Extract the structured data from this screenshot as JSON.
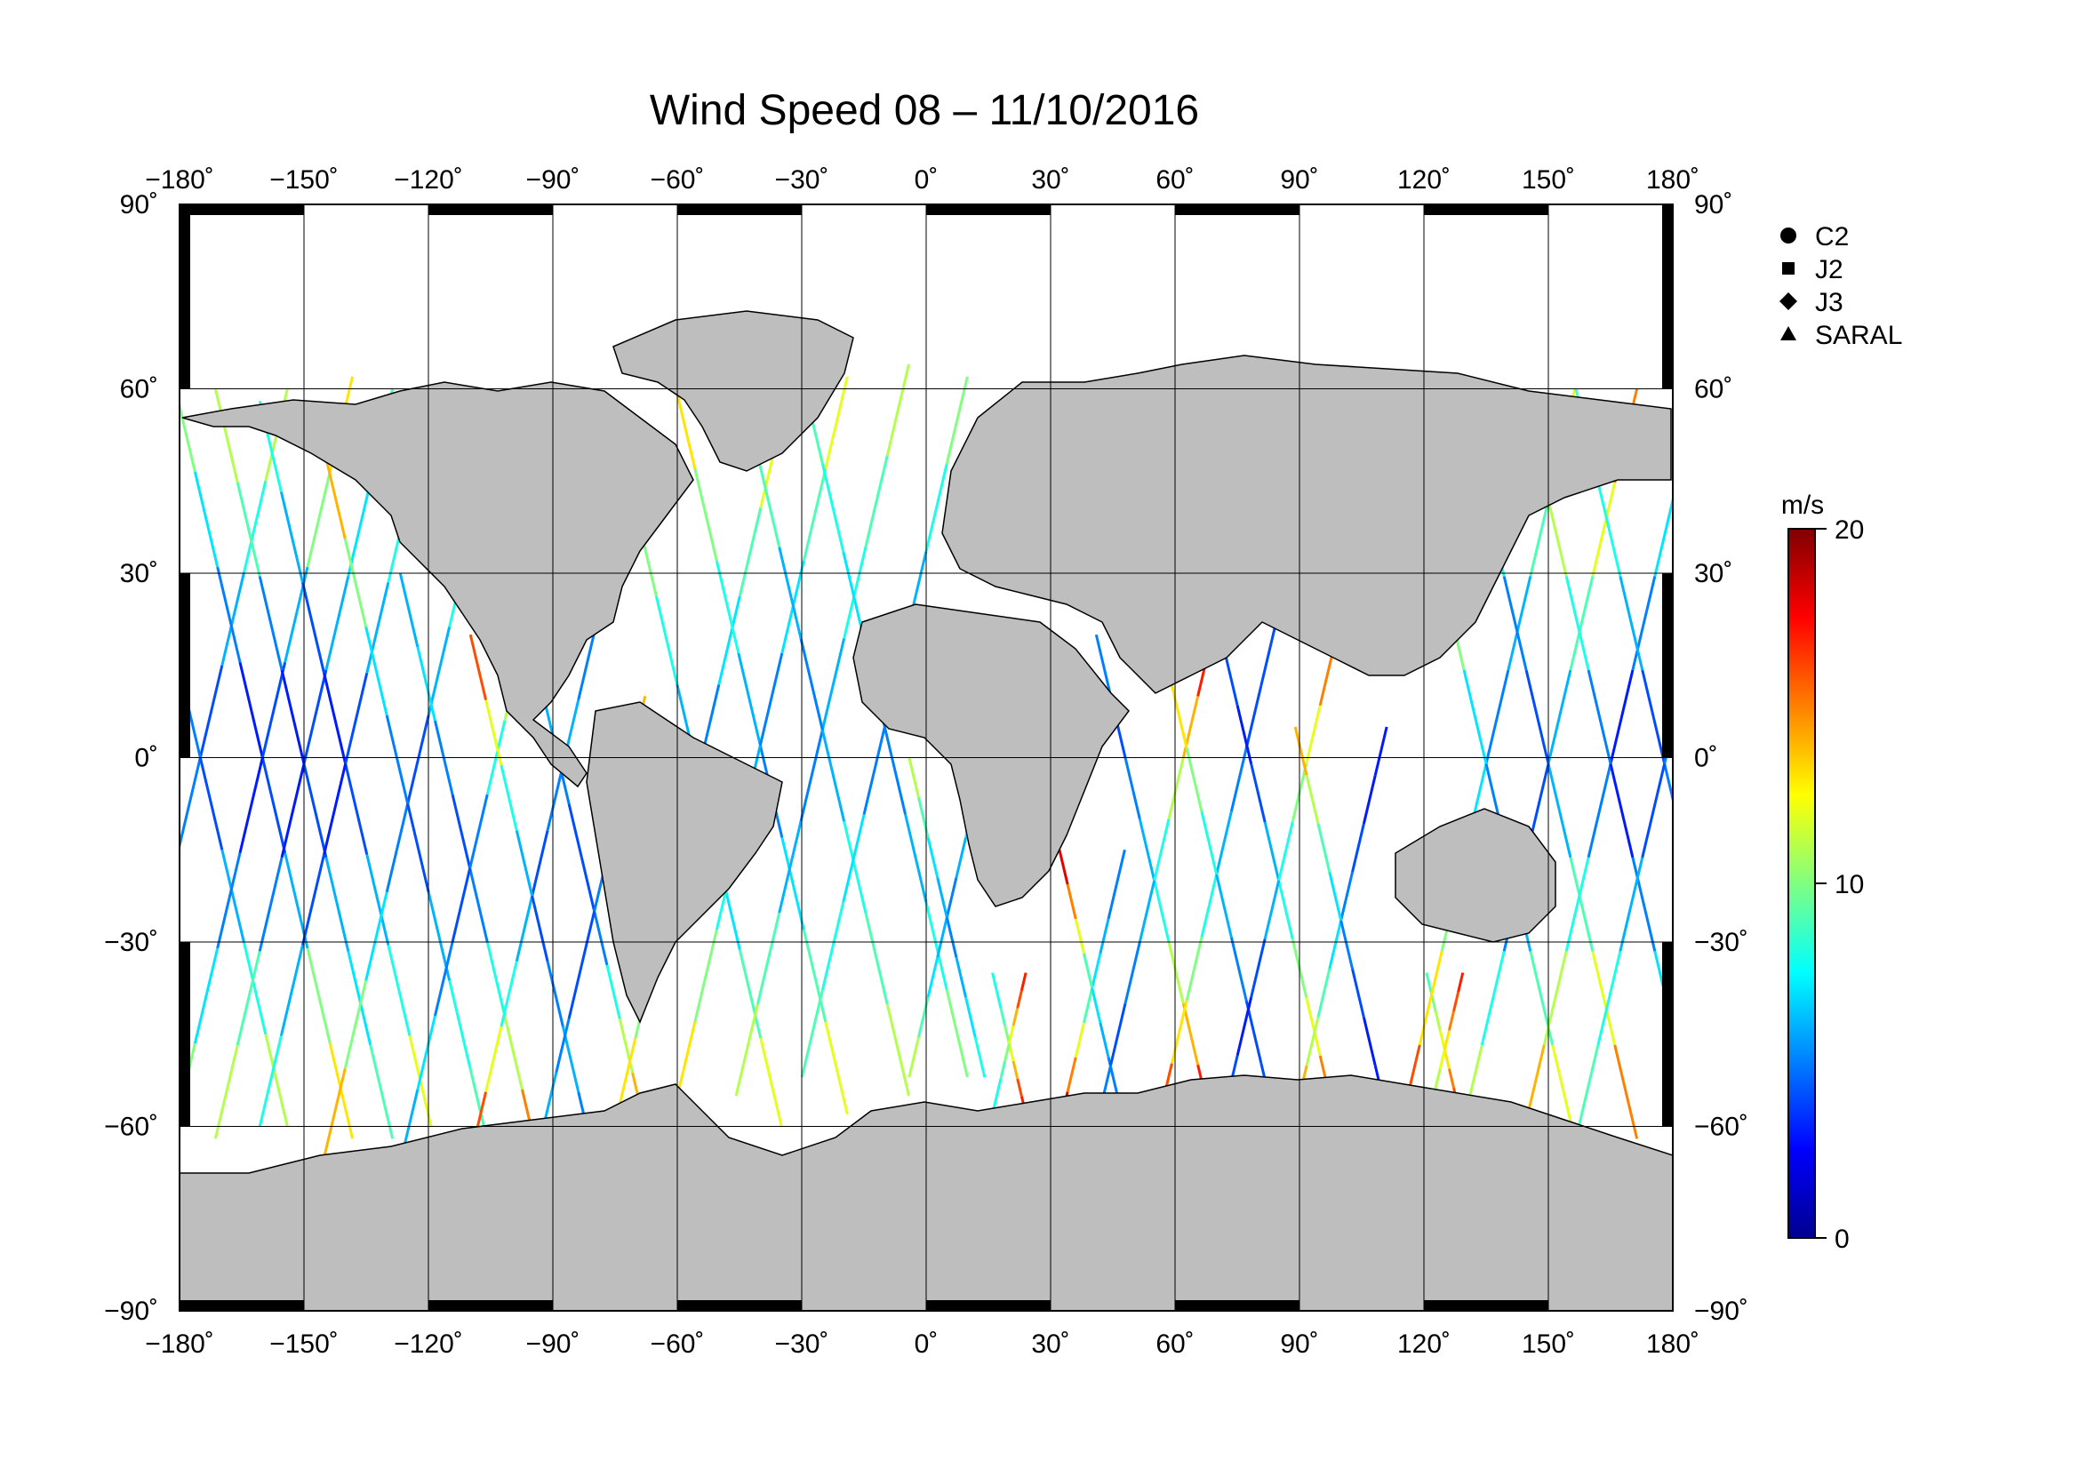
{
  "title": "Wind Speed 08 – 11/10/2016",
  "map": {
    "lon_range": [
      -180,
      180
    ],
    "lat_range": [
      -90,
      90
    ],
    "grid_lon_step": 30,
    "grid_lat_step": 30,
    "land_color": "#bebebe",
    "ocean_color": "#ffffff",
    "lon_labels": [
      "−180˚",
      "−150˚",
      "−120˚",
      "−90˚",
      "−60˚",
      "−30˚",
      "0˚",
      "30˚",
      "60˚",
      "90˚",
      "120˚",
      "150˚",
      "180˚"
    ],
    "lat_labels": [
      "90˚",
      "60˚",
      "30˚",
      "0˚",
      "−30˚",
      "−60˚",
      "−90˚"
    ]
  },
  "legend": {
    "placement": "top-right",
    "items": [
      {
        "label": "C2",
        "marker": "circle"
      },
      {
        "label": "J2",
        "marker": "square"
      },
      {
        "label": "J3",
        "marker": "diamond"
      },
      {
        "label": "SARAL",
        "marker": "triangle"
      }
    ]
  },
  "colorbar": {
    "unit": "m/s",
    "min": 0,
    "max": 20,
    "tick_labels": [
      "20",
      "10",
      "0"
    ],
    "tick_values": [
      20,
      10,
      0
    ],
    "colors": [
      "#00008f",
      "#0000ff",
      "#0080ff",
      "#00ffff",
      "#80ff80",
      "#ffff00",
      "#ff8000",
      "#ff0000",
      "#800000"
    ]
  },
  "chart_data": {
    "type": "scatter",
    "title": "Wind Speed 08 – 11/10/2016",
    "xlabel": "",
    "ylabel": "",
    "xlim": [
      -180,
      180
    ],
    "ylim": [
      -90,
      90
    ],
    "grid": true,
    "legend": "top-right",
    "series": [
      {
        "name": "C2"
      },
      {
        "name": "J2"
      },
      {
        "name": "J3"
      },
      {
        "name": "SARAL"
      }
    ],
    "tracks": [
      {
        "lon": -175,
        "lat": [
          -60,
          60
        ],
        "dir": 1,
        "speeds": [
          12,
          9,
          6,
          5,
          4,
          6,
          8,
          11
        ]
      },
      {
        "lon": -160,
        "lat": [
          -62,
          62
        ],
        "dir": -1,
        "speeds": [
          13,
          10,
          6,
          4,
          3,
          5,
          7,
          10
        ]
      },
      {
        "lon": -150,
        "lat": [
          -62,
          60
        ],
        "dir": 1,
        "speeds": [
          11,
          9,
          5,
          3,
          4,
          6,
          7,
          9
        ]
      },
      {
        "lon": -140,
        "lat": [
          -60,
          58
        ],
        "dir": -1,
        "speeds": [
          12,
          8,
          6,
          4,
          3,
          4,
          6,
          8
        ]
      },
      {
        "lon": -125,
        "lat": [
          -65,
          50
        ],
        "dir": 1,
        "speeds": [
          14,
          10,
          7,
          5,
          4,
          6,
          8,
          9
        ]
      },
      {
        "lon": -110,
        "lat": [
          -66,
          30
        ],
        "dir": -1,
        "speeds": [
          15,
          11,
          8,
          5,
          4,
          5,
          7,
          6
        ]
      },
      {
        "lon": -95,
        "lat": [
          -65,
          20
        ],
        "dir": 1,
        "speeds": [
          16,
          12,
          8,
          6,
          4,
          5,
          6,
          5
        ]
      },
      {
        "lon": -80,
        "lat": [
          -60,
          10
        ],
        "dir": -1,
        "speeds": [
          14,
          11,
          8,
          5,
          4,
          4,
          5,
          6
        ]
      },
      {
        "lon": -55,
        "lat": [
          -60,
          55
        ],
        "dir": 1,
        "speeds": [
          13,
          10,
          8,
          6,
          5,
          7,
          9,
          12
        ]
      },
      {
        "lon": -40,
        "lat": [
          -58,
          62
        ],
        "dir": -1,
        "speeds": [
          12,
          9,
          7,
          5,
          6,
          8,
          10,
          13
        ]
      },
      {
        "lon": -25,
        "lat": [
          -55,
          64
        ],
        "dir": 1,
        "speeds": [
          11,
          9,
          6,
          5,
          6,
          8,
          9,
          11
        ]
      },
      {
        "lon": -10,
        "lat": [
          -52,
          62
        ],
        "dir": -1,
        "speeds": [
          10,
          8,
          6,
          5,
          5,
          7,
          8,
          9
        ]
      },
      {
        "lon": 5,
        "lat": [
          -52,
          0
        ],
        "dir": 1,
        "speeds": [
          11,
          9,
          7,
          6,
          5,
          6,
          7,
          8
        ]
      },
      {
        "lon": 20,
        "lat": [
          -58,
          -35
        ],
        "dir": -1,
        "speeds": [
          17,
          16,
          14,
          12,
          10,
          9,
          8,
          8
        ]
      },
      {
        "lon": 40,
        "lat": [
          -60,
          -15
        ],
        "dir": 1,
        "speeds": [
          18,
          15,
          12,
          9,
          7,
          6,
          5,
          5
        ]
      },
      {
        "lon": 55,
        "lat": [
          -60,
          20
        ],
        "dir": -1,
        "speeds": [
          17,
          14,
          11,
          8,
          6,
          5,
          4,
          5
        ]
      },
      {
        "lon": 70,
        "lat": [
          -60,
          22
        ],
        "dir": 1,
        "speeds": [
          16,
          13,
          10,
          8,
          6,
          5,
          4,
          4
        ]
      },
      {
        "lon": 85,
        "lat": [
          -58,
          18
        ],
        "dir": -1,
        "speeds": [
          15,
          12,
          10,
          8,
          6,
          4,
          3,
          4
        ]
      },
      {
        "lon": 100,
        "lat": [
          -58,
          5
        ],
        "dir": 1,
        "speeds": [
          14,
          11,
          9,
          7,
          5,
          4,
          3,
          3
        ]
      },
      {
        "lon": 125,
        "lat": [
          -60,
          -35
        ],
        "dir": -1,
        "speeds": [
          17,
          16,
          15,
          13,
          12,
          11,
          10,
          9
        ]
      },
      {
        "lon": 135,
        "lat": [
          -62,
          60
        ],
        "dir": 1,
        "speeds": [
          16,
          13,
          10,
          7,
          5,
          6,
          9,
          12
        ]
      },
      {
        "lon": 150,
        "lat": [
          -62,
          60
        ],
        "dir": -1,
        "speeds": [
          15,
          12,
          9,
          6,
          4,
          5,
          8,
          11
        ]
      },
      {
        "lon": 165,
        "lat": [
          -62,
          60
        ],
        "dir": 1,
        "speeds": [
          14,
          11,
          8,
          5,
          3,
          5,
          7,
          10
        ]
      },
      {
        "lon": 178,
        "lat": [
          -62,
          60
        ],
        "dir": -1,
        "speeds": [
          13,
          10,
          7,
          5,
          4,
          6,
          8,
          9
        ]
      }
    ]
  }
}
